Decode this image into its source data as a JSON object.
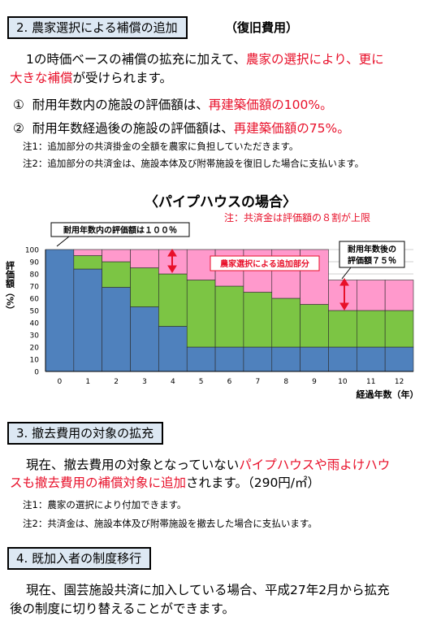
{
  "sections": {
    "s2": {
      "heading": "2. 農家選択による補償の追加",
      "side": "（復旧費用）"
    },
    "s3": {
      "heading": "3. 撤去費用の対象の拡充"
    },
    "s4": {
      "heading": "4. 既加入者の制度移行"
    }
  },
  "s2_intro": {
    "a": "1の時価ベースの補償の拡充に加えて、",
    "b": "農家の選択により、更に",
    "c": "大きな補償",
    "d": "が受けられます。"
  },
  "s2_items": [
    {
      "num": "①",
      "text": "耐用年数内の施設の評価額は、",
      "value": "再建築価額の100%。"
    },
    {
      "num": "②",
      "text": "耐用年数経過後の施設の評価額は、",
      "value": "再建築価額の75%。"
    }
  ],
  "s2_notes": [
    "注1：追加部分の共済掛金の全額を農家に負担していただきます。",
    "注2：追加部分の共済金は、施設本体及び附帯施設を復旧した場合に支払います。"
  ],
  "chart_title": "〈パイプハウスの場合〉",
  "chart_caption": "注：共済金は評価額の８割が上限",
  "chart_data": {
    "type": "bar",
    "stacked": true,
    "categories": [
      "0",
      "1",
      "2",
      "3",
      "4",
      "5",
      "6",
      "7",
      "8",
      "9",
      "10",
      "11",
      "12"
    ],
    "series": [
      {
        "color": "#4f81bd",
        "values": [
          100,
          84,
          69,
          53,
          37,
          20,
          20,
          20,
          20,
          20,
          20,
          20,
          20
        ]
      },
      {
        "color": "#7cc544",
        "values": [
          0,
          11,
          21,
          32,
          43,
          55,
          50,
          45,
          40,
          35,
          30,
          30,
          30
        ]
      },
      {
        "color": "#ff99cc",
        "values": [
          0,
          5,
          10,
          15,
          20,
          25,
          30,
          35,
          40,
          45,
          25,
          25,
          25
        ]
      }
    ],
    "ylim": [
      0,
      100
    ],
    "yticks": [
      "0",
      "10",
      "20",
      "30",
      "40",
      "50",
      "60",
      "70",
      "80",
      "90",
      "100"
    ],
    "ylabel": "評価額（%）",
    "xlabel": "経過年数（年）",
    "grid": true,
    "annotations": {
      "within": "耐用年数内の評価額は１００％",
      "added": "農家選択による追加部分",
      "after_line1": "耐用年数後の",
      "after_line2": "評価額７５％"
    }
  },
  "s3_text": {
    "a": "現在、撤去費用の対象となっていない",
    "b": "パイプハウスや雨よけハウ",
    "c": "スも撤去費用の補償対象に追加",
    "d": "されます。（290円/㎡）"
  },
  "s3_notes": [
    "注1：農家の選択により付加できます。",
    "注2：共済金は、施設本体及び附帯施設を撤去した場合に支払います。"
  ],
  "s4_text": {
    "line1": "現在、園芸施設共済に加入している場合、平成27年2月から拡充",
    "line2": "後の制度に切り替えることができます。"
  }
}
